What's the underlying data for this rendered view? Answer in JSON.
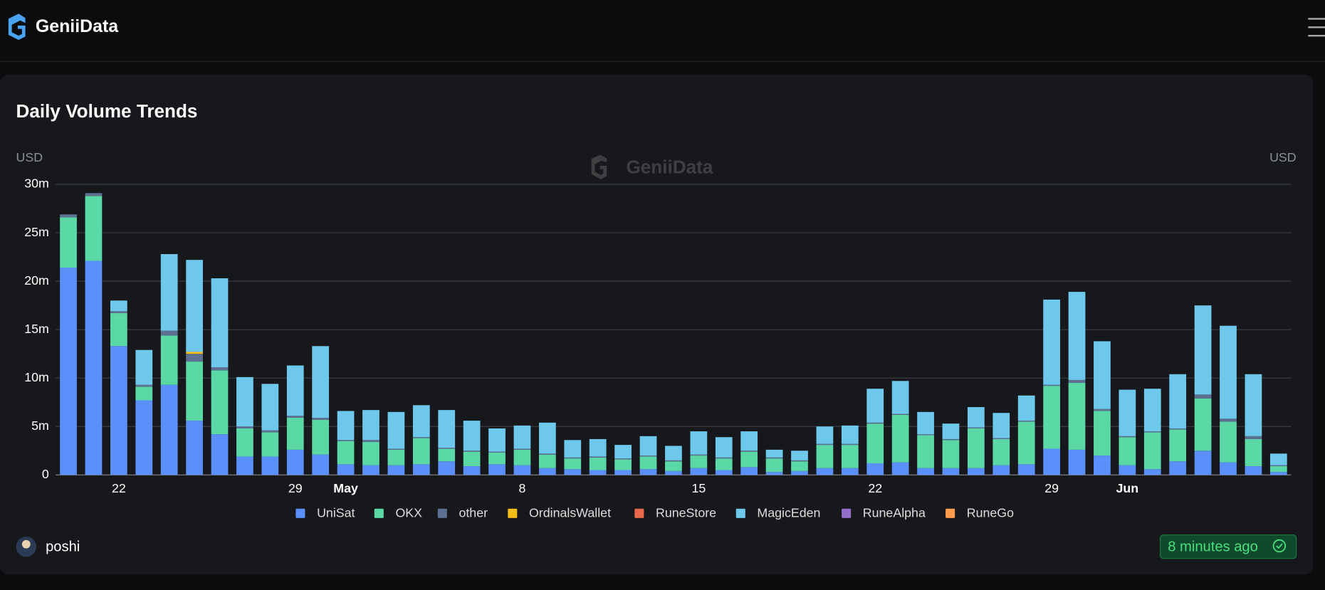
{
  "header": {
    "brand": "GeniiData"
  },
  "chart_data": {
    "type": "bar",
    "stacked": true,
    "title": "Daily Volume Trends",
    "y_label": "USD",
    "y2_label": "USD",
    "watermark": "GeniiData",
    "grid": true,
    "legend": "bottom",
    "categories": [
      null,
      null,
      "22",
      null,
      null,
      null,
      null,
      null,
      null,
      "29",
      null,
      "May",
      null,
      null,
      null,
      null,
      null,
      null,
      "8",
      null,
      null,
      null,
      null,
      null,
      null,
      "15",
      null,
      null,
      null,
      null,
      null,
      null,
      "22",
      null,
      null,
      null,
      null,
      null,
      null,
      "29",
      null,
      null,
      "Jun",
      null,
      null,
      null,
      null,
      null,
      null
    ],
    "ylim": [
      0,
      30000000
    ],
    "yticks": [
      {
        "value": 0,
        "label": "0"
      },
      {
        "value": 5000000,
        "label": "5m"
      },
      {
        "value": 10000000,
        "label": "10m"
      },
      {
        "value": 15000000,
        "label": "15m"
      },
      {
        "value": 20000000,
        "label": "20m"
      },
      {
        "value": 25000000,
        "label": "25m"
      },
      {
        "value": 30000000,
        "label": "30m"
      }
    ],
    "series": [
      {
        "name": "UniSat",
        "color": "#5b8ff9",
        "values": [
          21400000,
          22100000,
          13300000,
          7700000,
          9300000,
          5600000,
          4200000,
          1900000,
          1900000,
          2600000,
          2100000,
          1100000,
          1000000,
          1000000,
          1100000,
          1400000,
          900000,
          1100000,
          1000000,
          700000,
          600000,
          500000,
          500000,
          600000,
          400000,
          700000,
          500000,
          800000,
          300000,
          400000,
          700000,
          700000,
          1200000,
          1300000,
          700000,
          700000,
          700000,
          1000000,
          1100000,
          2700000,
          2600000,
          2000000,
          1000000,
          600000,
          1400000,
          2500000,
          1300000,
          900000,
          300000
        ]
      },
      {
        "name": "OKX",
        "color": "#5ad8a6",
        "values": [
          5200000,
          6700000,
          3400000,
          1400000,
          5100000,
          6100000,
          6600000,
          2900000,
          2500000,
          3300000,
          3600000,
          2400000,
          2400000,
          1600000,
          2700000,
          1300000,
          1500000,
          1200000,
          1600000,
          1400000,
          1100000,
          1300000,
          1100000,
          1300000,
          1000000,
          1300000,
          1200000,
          1600000,
          1400000,
          1000000,
          2400000,
          2400000,
          4100000,
          4900000,
          3400000,
          2900000,
          4100000,
          2700000,
          4400000,
          6500000,
          6900000,
          4600000,
          2900000,
          3800000,
          3300000,
          5400000,
          4200000,
          2800000,
          600000
        ]
      },
      {
        "name": "other",
        "color": "#5d7092",
        "values": [
          300000,
          300000,
          200000,
          200000,
          500000,
          800000,
          300000,
          200000,
          200000,
          200000,
          200000,
          100000,
          200000,
          100000,
          100000,
          100000,
          100000,
          100000,
          100000,
          100000,
          100000,
          100000,
          100000,
          100000,
          100000,
          100000,
          100000,
          100000,
          100000,
          100000,
          100000,
          100000,
          100000,
          100000,
          100000,
          100000,
          100000,
          100000,
          100000,
          100000,
          300000,
          200000,
          100000,
          100000,
          100000,
          400000,
          300000,
          300000,
          100000
        ]
      },
      {
        "name": "OrdinalsWallet",
        "color": "#f6bd16",
        "values": [
          0,
          0,
          0,
          0,
          0,
          200000,
          0,
          0,
          0,
          0,
          0,
          0,
          0,
          0,
          0,
          0,
          0,
          0,
          0,
          0,
          0,
          0,
          0,
          0,
          0,
          0,
          0,
          0,
          0,
          0,
          0,
          0,
          0,
          0,
          0,
          0,
          0,
          0,
          0,
          0,
          0,
          0,
          0,
          0,
          0,
          0,
          0,
          0,
          0
        ]
      },
      {
        "name": "RuneStore",
        "color": "#e8684a",
        "values": [
          0,
          0,
          0,
          0,
          0,
          0,
          0,
          0,
          0,
          0,
          0,
          0,
          0,
          0,
          0,
          0,
          0,
          0,
          0,
          0,
          0,
          0,
          0,
          0,
          0,
          0,
          0,
          0,
          0,
          0,
          0,
          0,
          0,
          0,
          0,
          0,
          0,
          0,
          0,
          0,
          0,
          0,
          0,
          0,
          0,
          0,
          0,
          0,
          0
        ]
      },
      {
        "name": "MagicEden",
        "color": "#6dc8ec",
        "values": [
          0,
          0,
          1100000,
          3600000,
          7900000,
          9500000,
          9200000,
          5100000,
          4800000,
          5200000,
          7400000,
          3000000,
          3100000,
          3800000,
          3300000,
          3900000,
          3100000,
          2400000,
          2400000,
          3200000,
          1800000,
          1800000,
          1400000,
          2000000,
          1500000,
          2400000,
          2100000,
          2000000,
          800000,
          1000000,
          1800000,
          1900000,
          3500000,
          3400000,
          2300000,
          1600000,
          2100000,
          2600000,
          2600000,
          8800000,
          9100000,
          7000000,
          4800000,
          4400000,
          5600000,
          9200000,
          9600000,
          6400000,
          1200000
        ]
      },
      {
        "name": "RuneAlpha",
        "color": "#9270ca",
        "values": [
          0,
          0,
          0,
          0,
          0,
          0,
          0,
          0,
          0,
          0,
          0,
          0,
          0,
          0,
          0,
          0,
          0,
          0,
          0,
          0,
          0,
          0,
          0,
          0,
          0,
          0,
          0,
          0,
          0,
          0,
          0,
          0,
          0,
          0,
          0,
          0,
          0,
          0,
          0,
          0,
          0,
          0,
          0,
          0,
          0,
          0,
          0,
          0,
          0
        ]
      },
      {
        "name": "RuneGo",
        "color": "#ff9d4d",
        "values": [
          0,
          0,
          0,
          0,
          0,
          0,
          0,
          0,
          0,
          0,
          0,
          0,
          0,
          0,
          0,
          0,
          0,
          0,
          0,
          0,
          0,
          0,
          0,
          0,
          0,
          0,
          0,
          0,
          0,
          0,
          0,
          0,
          0,
          0,
          0,
          0,
          0,
          0,
          0,
          0,
          0,
          0,
          0,
          0,
          0,
          0,
          0,
          0,
          0
        ]
      }
    ]
  },
  "footer": {
    "user": "poshi",
    "updated": "8 minutes ago"
  }
}
